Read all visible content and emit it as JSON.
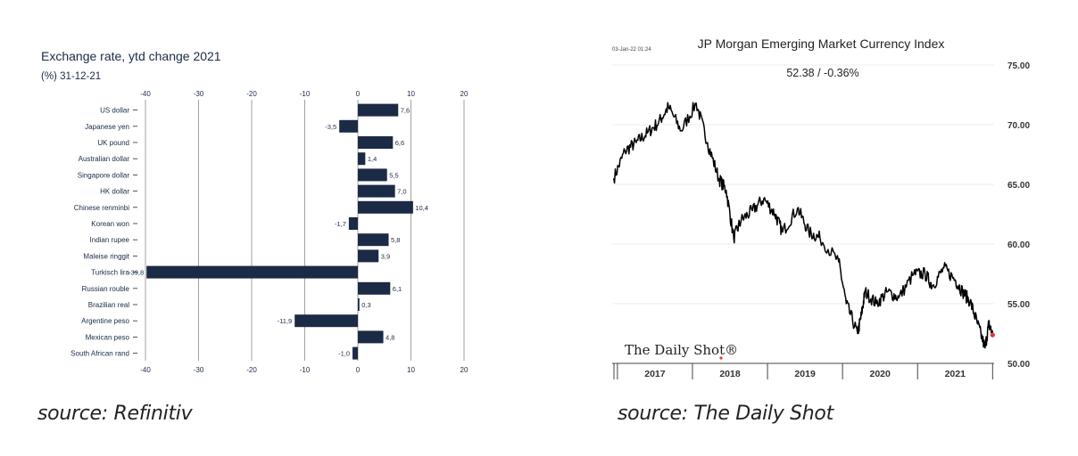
{
  "chart_data": [
    {
      "type": "bar",
      "orientation": "horizontal",
      "title": "Exchange rate, ytd change 2021",
      "subtitle": "(%) 31-12-21",
      "categories": [
        "US dollar",
        "Japanese yen",
        "UK pound",
        "Australian dollar",
        "Singapore dollar",
        "HK dollar",
        "Chinese renminbi",
        "Korean won",
        "Indian rupee",
        "Maleise ringgit",
        "Turkisch lira",
        "Russian rouble",
        "Brazilian real",
        "Argentine peso",
        "Mexican peso",
        "South African rand"
      ],
      "values": [
        7.6,
        -3.5,
        6.6,
        1.4,
        5.5,
        7.0,
        10.4,
        -1.7,
        5.8,
        3.9,
        -39.8,
        6.1,
        0.3,
        -11.9,
        4.8,
        -1.0
      ],
      "value_labels": [
        "7,6",
        "-3,5",
        "6,6",
        "1,4",
        "5,5",
        "7,0",
        "10,4",
        "-1,7",
        "5,8",
        "3,9",
        "-39,8",
        "6,1",
        "0,3",
        "-11,9",
        "4,8",
        "-1,0"
      ],
      "xlim": [
        -40,
        20
      ],
      "xticks": [
        -40,
        -30,
        -20,
        -10,
        0,
        10,
        20
      ],
      "tick_labels": [
        "-40",
        "-30",
        "-20",
        "-10",
        "0",
        "10",
        "20"
      ],
      "grid": true,
      "bar_color": "#1b2a45",
      "source": "source: Refinitiv"
    },
    {
      "type": "line",
      "title": "JP Morgan Emerging Market Currency Index",
      "timestamp": "03-Jan-22 01:24",
      "last_value_label": "52.38  /  -0.36%",
      "x_labels": [
        "2017",
        "2018",
        "2019",
        "2020",
        "2021"
      ],
      "ylim": [
        50,
        75
      ],
      "yticks": [
        50,
        55,
        60,
        65,
        70,
        75
      ],
      "ytick_labels": [
        "50.00",
        "55.00",
        "60.00",
        "65.00",
        "70.00",
        "75.00"
      ],
      "x": [
        2016.95,
        2017.1,
        2017.25,
        2017.4,
        2017.55,
        2017.68,
        2017.85,
        2018.05,
        2018.2,
        2018.35,
        2018.45,
        2018.55,
        2018.65,
        2018.8,
        2018.95,
        2019.1,
        2019.2,
        2019.4,
        2019.55,
        2019.7,
        2019.95,
        2020.05,
        2020.2,
        2020.25,
        2020.3,
        2020.45,
        2020.6,
        2020.75,
        2020.95,
        2021.1,
        2021.2,
        2021.35,
        2021.5,
        2021.6,
        2021.7,
        2021.8,
        2021.9,
        2021.95,
        2022.0
      ],
      "y": [
        65.5,
        67.8,
        68.5,
        69.3,
        70.2,
        71.5,
        69.5,
        71.8,
        68.5,
        65.5,
        64.5,
        60.5,
        62.0,
        62.8,
        63.8,
        62.5,
        61.0,
        63.0,
        61.0,
        60.5,
        58.5,
        55.0,
        52.5,
        54.0,
        56.0,
        55.0,
        56.0,
        55.5,
        57.5,
        57.5,
        56.5,
        58.0,
        57.0,
        56.0,
        55.2,
        53.3,
        51.3,
        53.3,
        52.38
      ],
      "series_color": "#000000",
      "last_point_color": "#e53935",
      "logo": "The Daily Shot®",
      "source": "source: The Daily Shot"
    }
  ]
}
